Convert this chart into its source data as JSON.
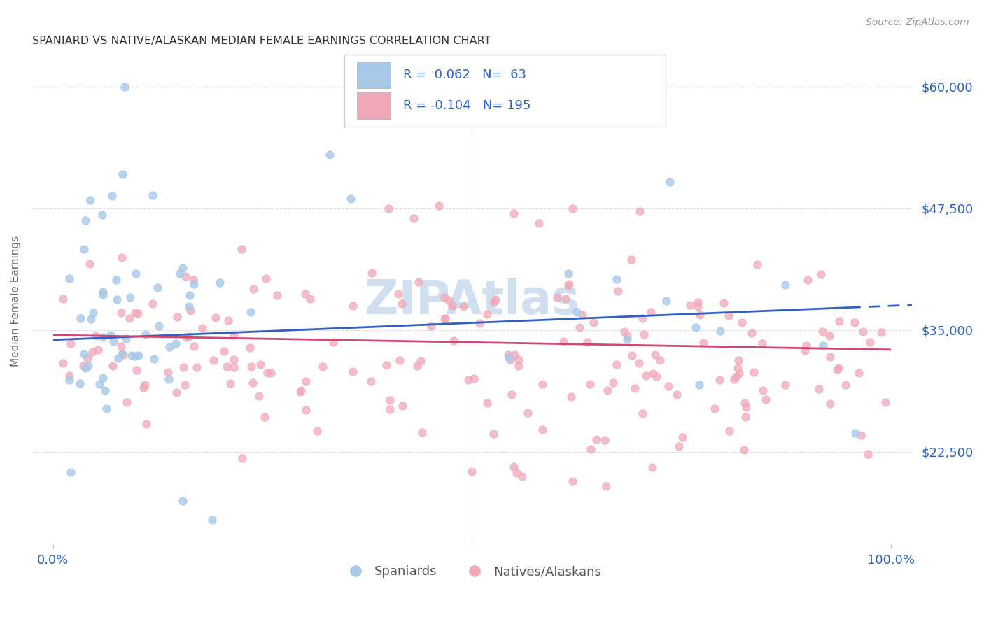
{
  "title": "SPANIARD VS NATIVE/ALASKAN MEDIAN FEMALE EARNINGS CORRELATION CHART",
  "source": "Source: ZipAtlas.com",
  "ylabel": "Median Female Earnings",
  "color_spaniard": "#a8c8e8",
  "color_native": "#f0a8b8",
  "line_color_spaniard": "#3060c0",
  "line_color_native": "#d04870",
  "text_color": "#3060c0",
  "title_color": "#333333",
  "source_color": "#999999",
  "ylabel_color": "#666666",
  "ytick_label_color": "#3060c0",
  "xtick_label_color": "#3060c0",
  "watermark_color": "#d0dff0",
  "background_color": "#ffffff",
  "grid_color": "#dddddd",
  "R1": "0.062",
  "N1": "63",
  "R2": "-0.104",
  "N2": "195",
  "ytick_vals": [
    22500,
    35000,
    47500,
    60000
  ],
  "ytick_labels": [
    "$22,500",
    "$35,000",
    "$47,500",
    "$60,000"
  ],
  "ylim": [
    13000,
    63000
  ],
  "xlim_left": -0.025,
  "xlim_right": 1.025,
  "seed_spaniard": 42,
  "seed_native": 99
}
